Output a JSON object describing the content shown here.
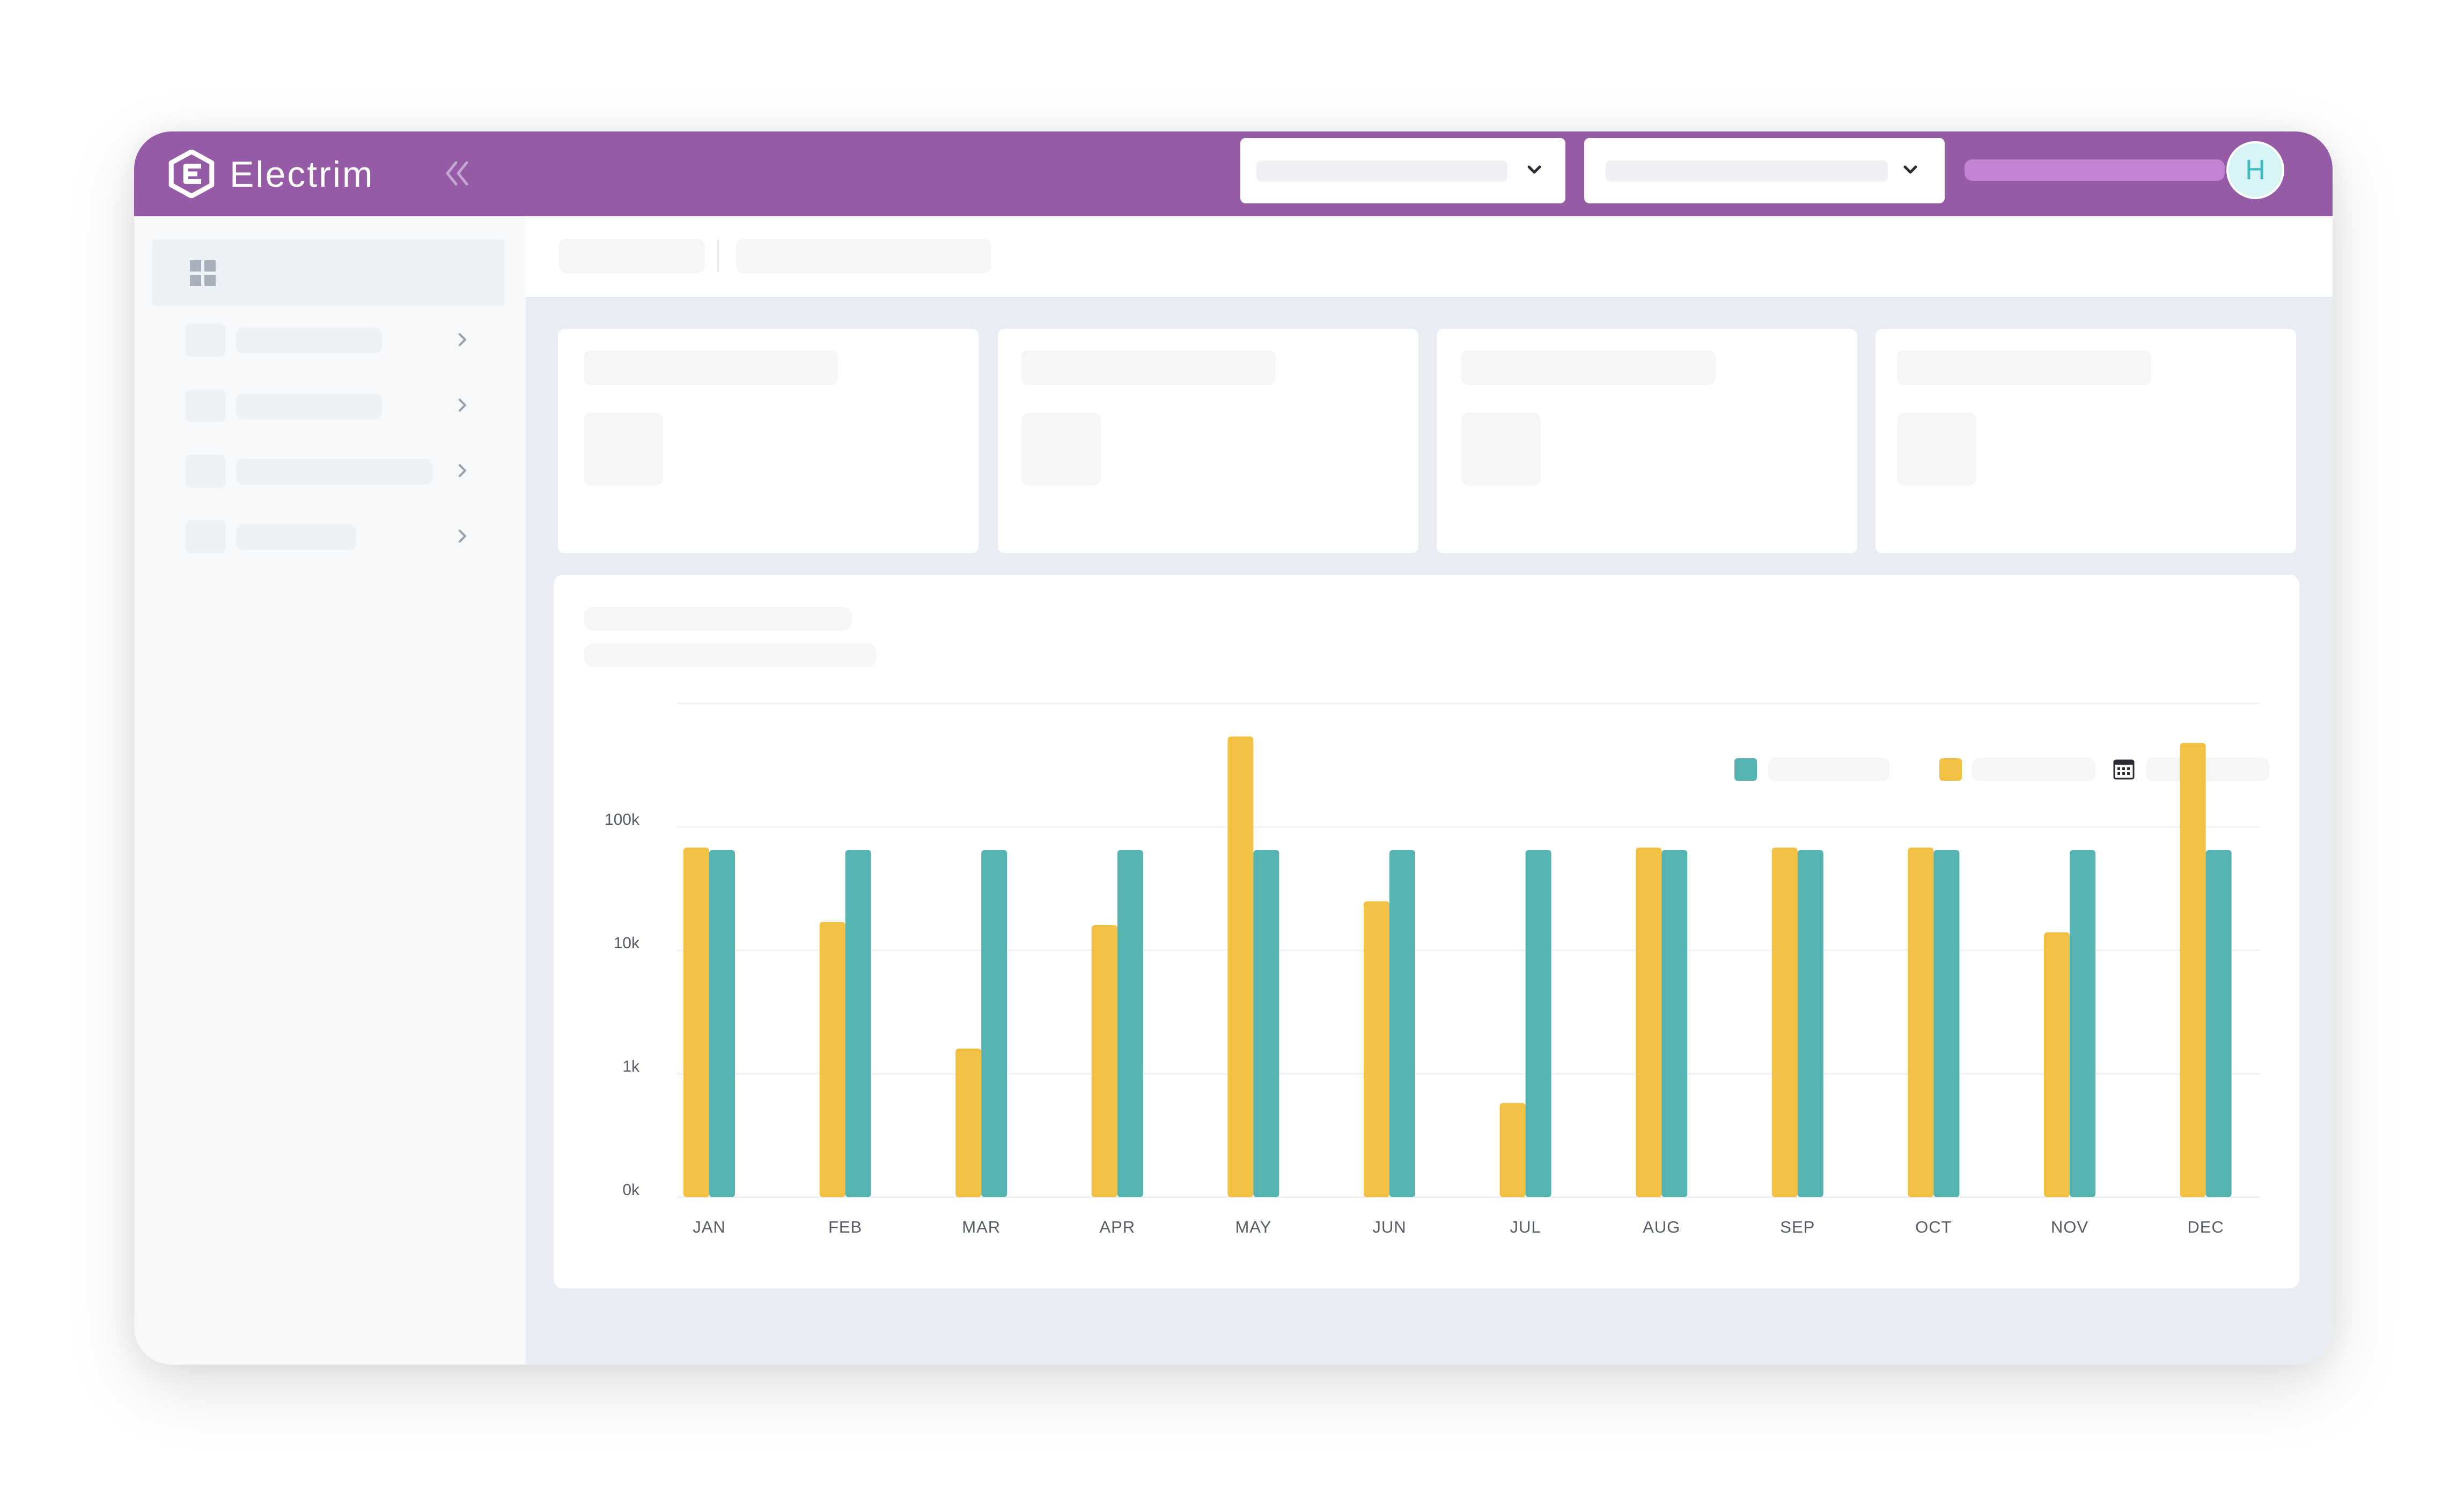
{
  "app": {
    "brand": "Electrim",
    "avatar_initial": "H",
    "accent_color": "#955ba4"
  },
  "icons": {
    "logo": "electrim-logo-icon",
    "collapse": "double-chevron-left-icon",
    "dropdown": "chevron-down-icon",
    "dashboard": "dashboard-grid-icon",
    "sidebar_arrow": "chevron-right-icon",
    "calendar": "calendar-icon"
  },
  "sidebar": {
    "items": [
      {
        "name": "sidebar-item-1"
      },
      {
        "name": "sidebar-item-2"
      },
      {
        "name": "sidebar-item-3"
      },
      {
        "name": "sidebar-item-4"
      }
    ]
  },
  "chart_data": {
    "type": "bar",
    "scale": "log",
    "categories": [
      "JAN",
      "FEB",
      "MAR",
      "APR",
      "MAY",
      "JUN",
      "JUL",
      "AUG",
      "SEP",
      "OCT",
      "NOV",
      "DEC"
    ],
    "y_ticks": [
      {
        "label": "0k",
        "value": 100
      },
      {
        "label": "1k",
        "value": 1000
      },
      {
        "label": "10k",
        "value": 10000
      },
      {
        "label": "100k",
        "value": 100000
      }
    ],
    "ylim": [
      100,
      1000000
    ],
    "grid": true,
    "legend_position": "top-right",
    "series": [
      {
        "color": "#f2c043",
        "values": [
          68000,
          17000,
          1600,
          16000,
          540000,
          25000,
          580,
          68000,
          68000,
          68000,
          14000,
          480000
        ]
      },
      {
        "color": "#55b3b1",
        "values": [
          65000,
          65000,
          65000,
          65000,
          65000,
          65000,
          65000,
          65000,
          65000,
          65000,
          65000,
          65000
        ]
      }
    ]
  }
}
